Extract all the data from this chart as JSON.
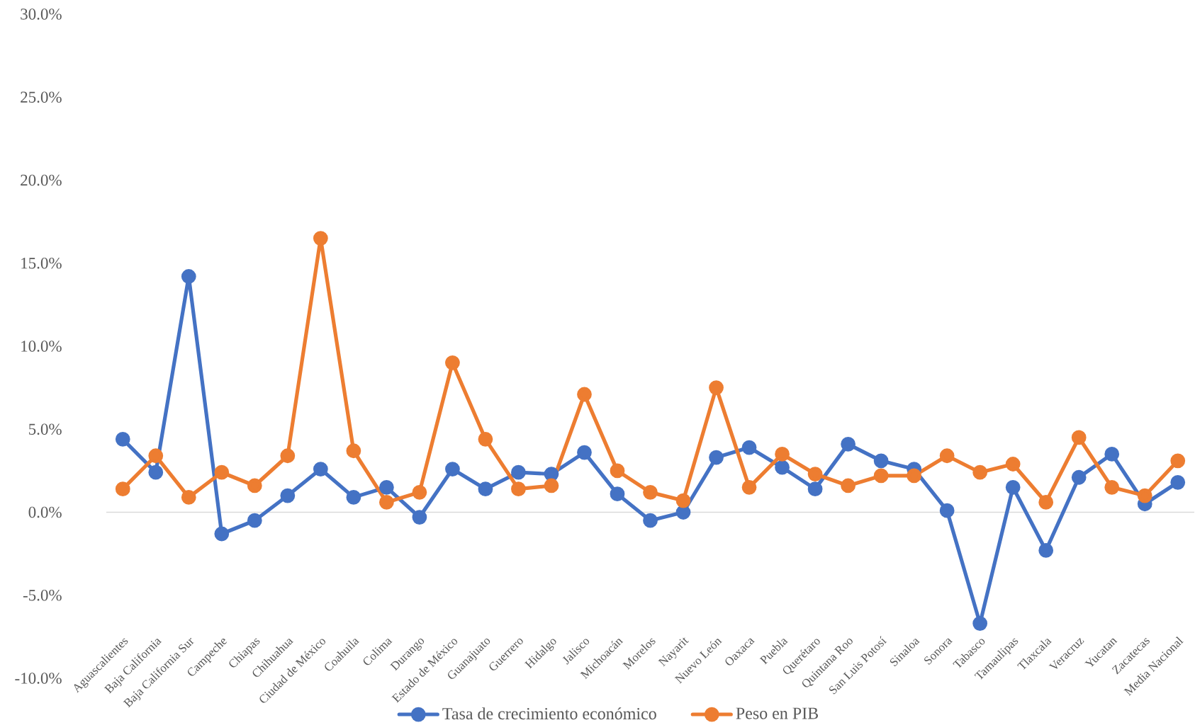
{
  "chart_data": {
    "type": "line",
    "categories": [
      "Aguascalientes",
      "Baja California",
      "Baja California Sur",
      "Campeche",
      "Chiapas",
      "Chihuahua",
      "Ciudad de México",
      "Coahuila",
      "Colima",
      "Durango",
      "Estado de México",
      "Guanajuato",
      "Guerrero",
      "Hidalgo",
      "Jalisco",
      "Michoacán",
      "Morelos",
      "Nayarit",
      "Nuevo León",
      "Oaxaca",
      "Puebla",
      "Querétaro",
      "Quintana Roo",
      "San Luis Potosí",
      "Sinaloa",
      "Sonora",
      "Tabasco",
      "Tamaulipas",
      "Tlaxcala",
      "Veracruz",
      "Yucatan",
      "Zacatecas",
      "Media Nacional"
    ],
    "series": [
      {
        "name": "Tasa de crecimiento económico",
        "color": "#4472c4",
        "values": [
          4.4,
          2.4,
          14.2,
          -1.3,
          -0.5,
          1.0,
          2.6,
          0.9,
          1.5,
          -0.3,
          2.6,
          1.4,
          2.4,
          2.3,
          3.6,
          1.1,
          -0.5,
          0.0,
          3.3,
          3.9,
          2.7,
          1.4,
          4.1,
          3.1,
          2.6,
          0.1,
          -6.7,
          1.5,
          -2.3,
          2.1,
          3.5,
          0.5,
          1.8
        ]
      },
      {
        "name": "Peso en PIB",
        "color": "#ed7d31",
        "values": [
          1.4,
          3.4,
          0.9,
          2.4,
          1.6,
          3.4,
          16.5,
          3.7,
          0.6,
          1.2,
          9.0,
          4.4,
          1.4,
          1.6,
          7.1,
          2.5,
          1.2,
          0.7,
          7.5,
          1.5,
          3.5,
          2.3,
          1.6,
          2.2,
          2.2,
          3.4,
          2.4,
          2.9,
          0.6,
          4.5,
          1.5,
          1.0,
          3.1
        ]
      }
    ],
    "ylim": [
      -10,
      30
    ],
    "yticks": [
      {
        "value": -10,
        "label": "-10.0%"
      },
      {
        "value": -5,
        "label": "-5.0%"
      },
      {
        "value": 0,
        "label": "0.0%"
      },
      {
        "value": 5,
        "label": "5.0%"
      },
      {
        "value": 10,
        "label": "10.0%"
      },
      {
        "value": 15,
        "label": "15.0%"
      },
      {
        "value": 20,
        "label": "20.0%"
      },
      {
        "value": 25,
        "label": "25.0%"
      },
      {
        "value": 30,
        "label": "30.0%"
      }
    ],
    "legend": "bottom",
    "marker": "circle",
    "line_style": "solid"
  }
}
